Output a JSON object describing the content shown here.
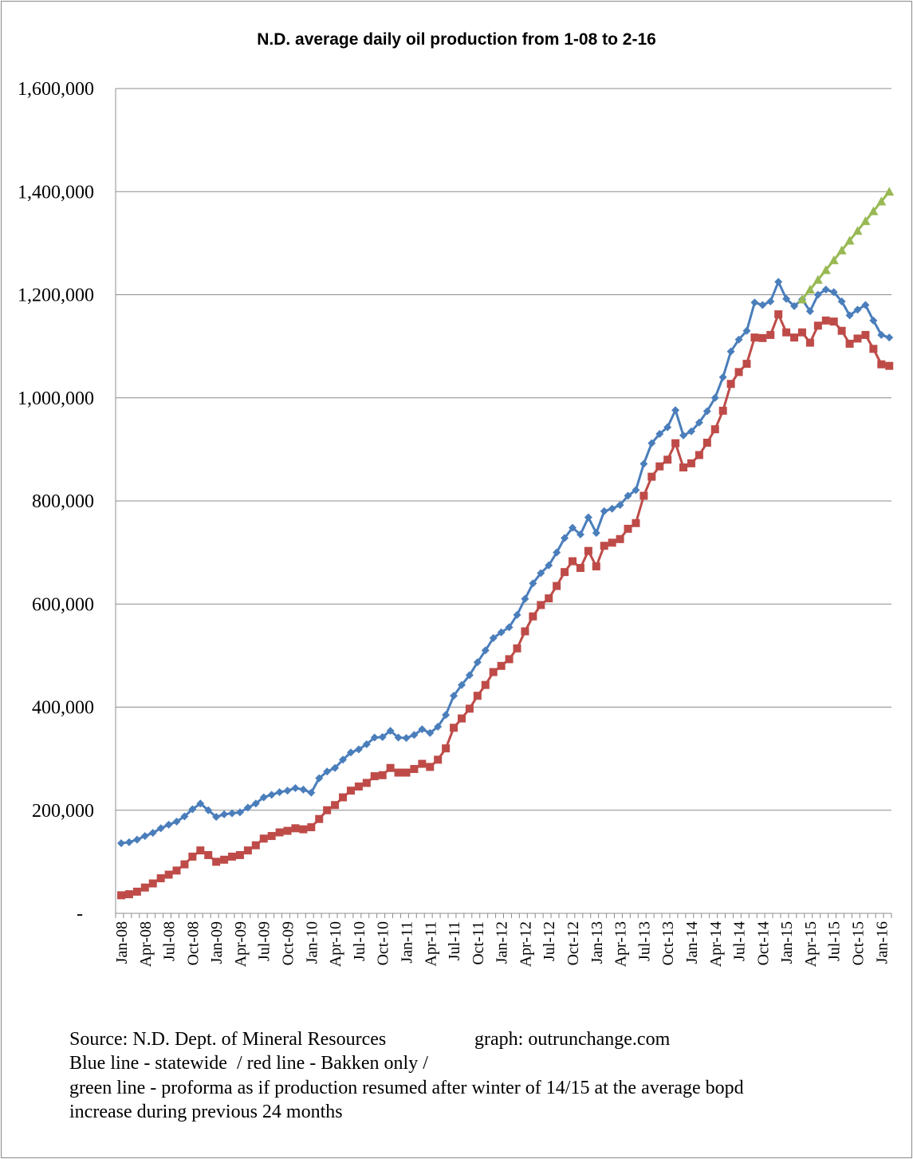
{
  "chart_data": {
    "type": "line",
    "title": "N.D. average daily oil production from 1-08 to 2-16",
    "xlabel": "",
    "ylabel": "",
    "ylim": [
      0,
      1600000
    ],
    "yticks": [
      0,
      200000,
      400000,
      600000,
      800000,
      1000000,
      1200000,
      1400000,
      1600000
    ],
    "ytick_labels": [
      "-",
      "200,000",
      "400,000",
      "600,000",
      "800,000",
      "1,000,000",
      "1,200,000",
      "1,400,000",
      "1,600,000"
    ],
    "grid": true,
    "x_start": "Jan-08",
    "x_end": "Feb-16",
    "xtick_labels": [
      "Jan-08",
      "Apr-08",
      "Jul-08",
      "Oct-08",
      "Jan-09",
      "Apr-09",
      "Jul-09",
      "Oct-09",
      "Jan-10",
      "Apr-10",
      "Jul-10",
      "Oct-10",
      "Jan-11",
      "Apr-11",
      "Jul-11",
      "Oct-11",
      "Jan-12",
      "Apr-12",
      "Jul-12",
      "Oct-12",
      "Jan-13",
      "Apr-13",
      "Jul-13",
      "Oct-13",
      "Jan-14",
      "Apr-14",
      "Jul-14",
      "Oct-14",
      "Jan-15",
      "Apr-15",
      "Jul-15",
      "Oct-15",
      "Jan-16"
    ],
    "series": [
      {
        "name": "Statewide",
        "color": "#4a7ebb",
        "marker": "diamond",
        "values": [
          136000,
          138000,
          143000,
          150000,
          156000,
          165000,
          172000,
          178000,
          188000,
          202000,
          213000,
          200000,
          187000,
          192000,
          194000,
          196000,
          205000,
          213000,
          225000,
          230000,
          235000,
          238000,
          243000,
          240000,
          234000,
          262000,
          275000,
          282000,
          298000,
          312000,
          318000,
          328000,
          341000,
          342000,
          354000,
          341000,
          340000,
          346000,
          357000,
          350000,
          362000,
          385000,
          422000,
          443000,
          462000,
          487000,
          510000,
          534000,
          545000,
          555000,
          579000,
          610000,
          640000,
          660000,
          675000,
          700000,
          728000,
          748000,
          735000,
          768000,
          738000,
          780000,
          785000,
          792000,
          810000,
          821000,
          872000,
          912000,
          930000,
          943000,
          976000,
          927000,
          935000,
          952000,
          974000,
          1000000,
          1040000,
          1090000,
          1113000,
          1130000,
          1185000,
          1180000,
          1187000,
          1225000,
          1192000,
          1178000,
          1191000,
          1168000,
          1200000,
          1210000,
          1205000,
          1187000,
          1160000,
          1171000,
          1180000,
          1150000,
          1122000,
          1117000
        ]
      },
      {
        "name": "Bakken only",
        "color": "#be4b48",
        "marker": "square",
        "values": [
          35000,
          37000,
          42000,
          50000,
          58000,
          68000,
          75000,
          83000,
          95000,
          110000,
          122000,
          113000,
          100000,
          104000,
          110000,
          113000,
          122000,
          132000,
          145000,
          150000,
          157000,
          160000,
          165000,
          163000,
          167000,
          183000,
          200000,
          210000,
          225000,
          238000,
          246000,
          253000,
          266000,
          268000,
          282000,
          273000,
          273000,
          280000,
          290000,
          284000,
          298000,
          320000,
          360000,
          378000,
          397000,
          422000,
          443000,
          468000,
          480000,
          493000,
          514000,
          547000,
          576000,
          598000,
          611000,
          635000,
          662000,
          683000,
          670000,
          703000,
          673000,
          713000,
          719000,
          726000,
          746000,
          757000,
          810000,
          847000,
          867000,
          880000,
          912000,
          865000,
          873000,
          889000,
          913000,
          939000,
          975000,
          1027000,
          1050000,
          1066000,
          1117000,
          1116000,
          1122000,
          1162000,
          1127000,
          1117000,
          1127000,
          1107000,
          1140000,
          1150000,
          1148000,
          1130000,
          1105000,
          1115000,
          1122000,
          1095000,
          1065000,
          1062000
        ]
      },
      {
        "name": "Proforma",
        "color": "#98b954",
        "marker": "triangle",
        "start_index": 86,
        "values": [
          1191000,
          1210000,
          1229000,
          1248000,
          1267000,
          1286000,
          1305000,
          1324000,
          1343000,
          1362000,
          1381000,
          1400000
        ]
      }
    ]
  },
  "footer": {
    "source": "Source: N.D. Dept. of Mineral Resources",
    "graph_credit": "graph: outrunchange.com",
    "line2": "Blue line - statewide  / red line - Bakken only /",
    "line3": "green line - proforma as if production resumed after winter of 14/15 at the average bopd",
    "line4": "increase during previous 24 months"
  }
}
